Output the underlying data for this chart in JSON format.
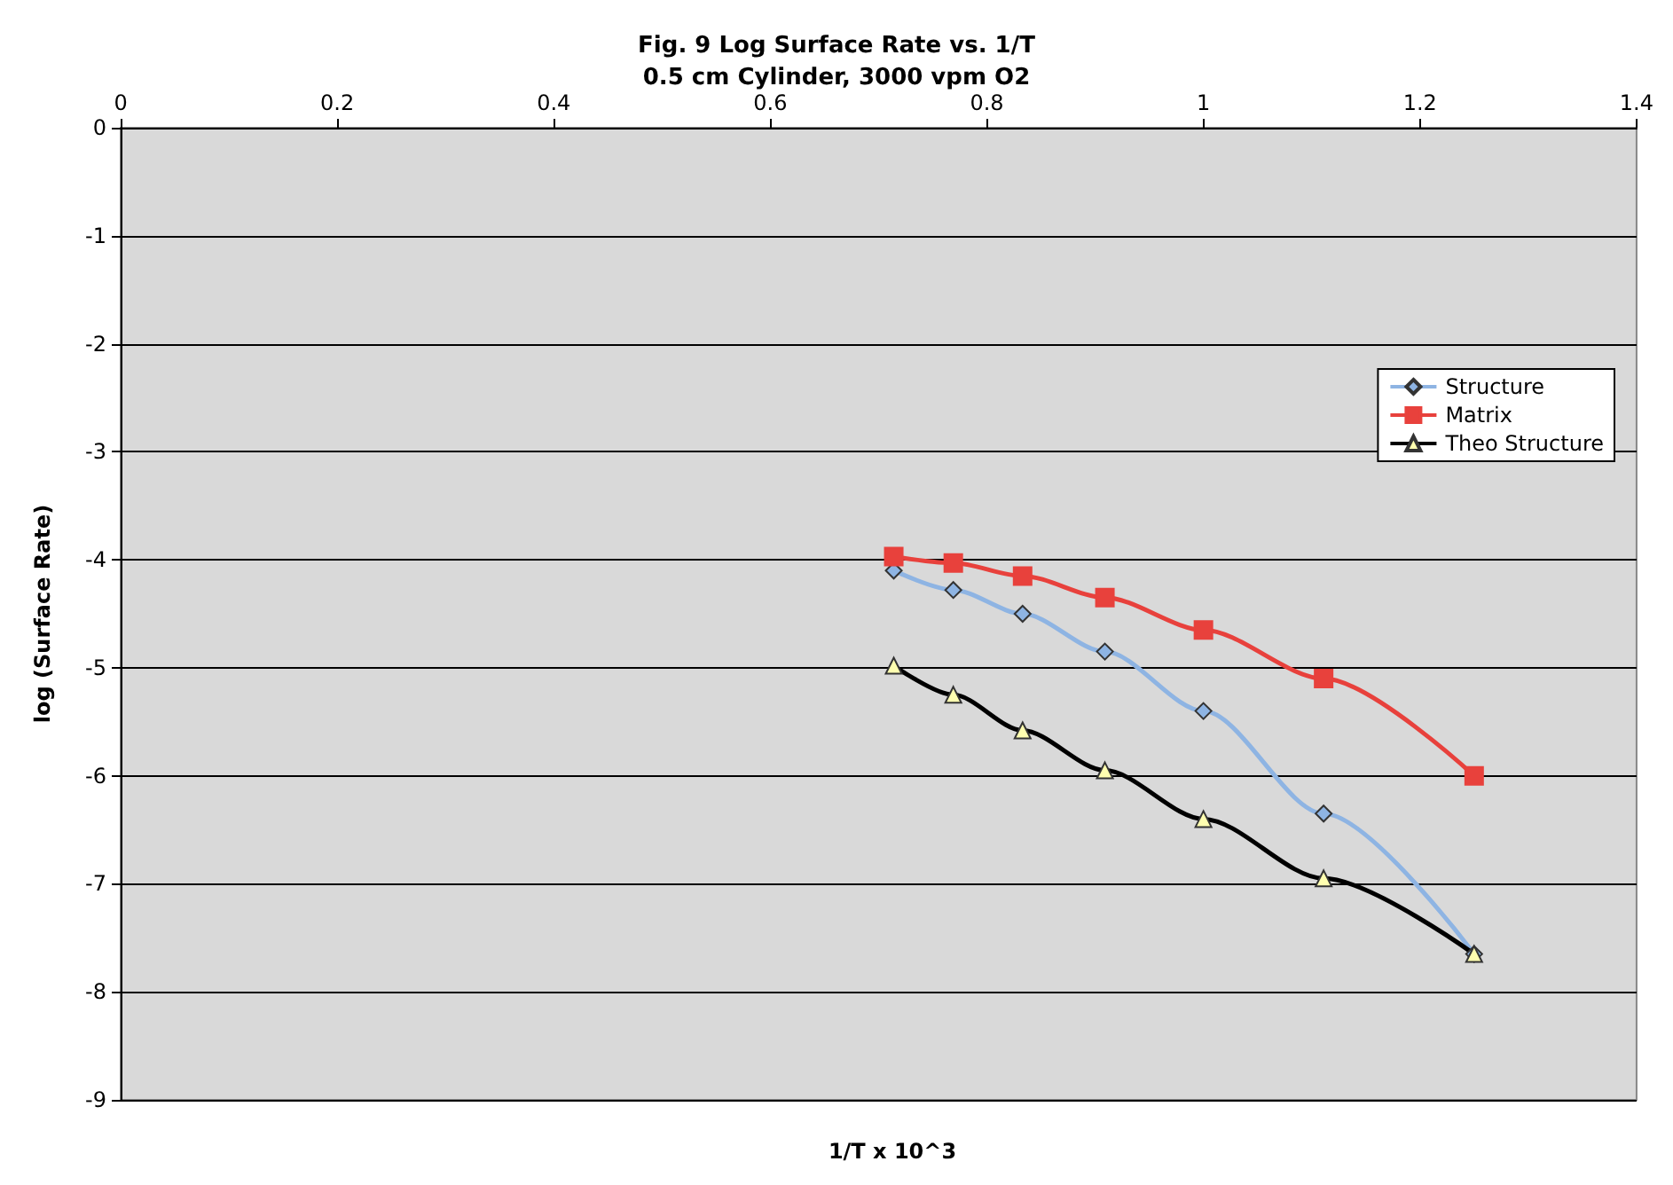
{
  "chart_data": {
    "type": "line",
    "title": "Fig. 9 Log Surface Rate vs. 1/T\n0.5 cm Cylinder, 3000 vpm O2",
    "xlabel": "1/T x 10^3",
    "ylabel": "log (Surface Rate)",
    "xlim": [
      0,
      1.4
    ],
    "xticks": [
      0,
      0.2,
      0.4,
      0.6,
      0.8,
      1,
      1.2,
      1.4
    ],
    "ylim": [
      -9,
      0
    ],
    "yticks": [
      -9,
      -8,
      -7,
      -6,
      -5,
      -4,
      -3,
      -2,
      -1,
      0
    ],
    "grid": "y",
    "legend": "top right",
    "x": [
      0.714,
      0.769,
      0.833,
      0.909,
      1.0,
      1.111,
      1.25
    ],
    "series": [
      {
        "name": "Structure",
        "color": "#8eb4e3",
        "marker": "diamond",
        "values": [
          -4.1,
          -4.28,
          -4.5,
          -4.85,
          -5.4,
          -6.35,
          -7.65
        ]
      },
      {
        "name": "Matrix",
        "color": "#e8413c",
        "marker": "square",
        "values": [
          -3.97,
          -4.03,
          -4.15,
          -4.35,
          -4.65,
          -5.1,
          -6.0
        ]
      },
      {
        "name": "Theo Structure",
        "color": "#000000",
        "marker": "triangle",
        "values": [
          -4.98,
          -5.25,
          -5.58,
          -5.95,
          -6.4,
          -6.95,
          -7.65
        ]
      }
    ]
  }
}
